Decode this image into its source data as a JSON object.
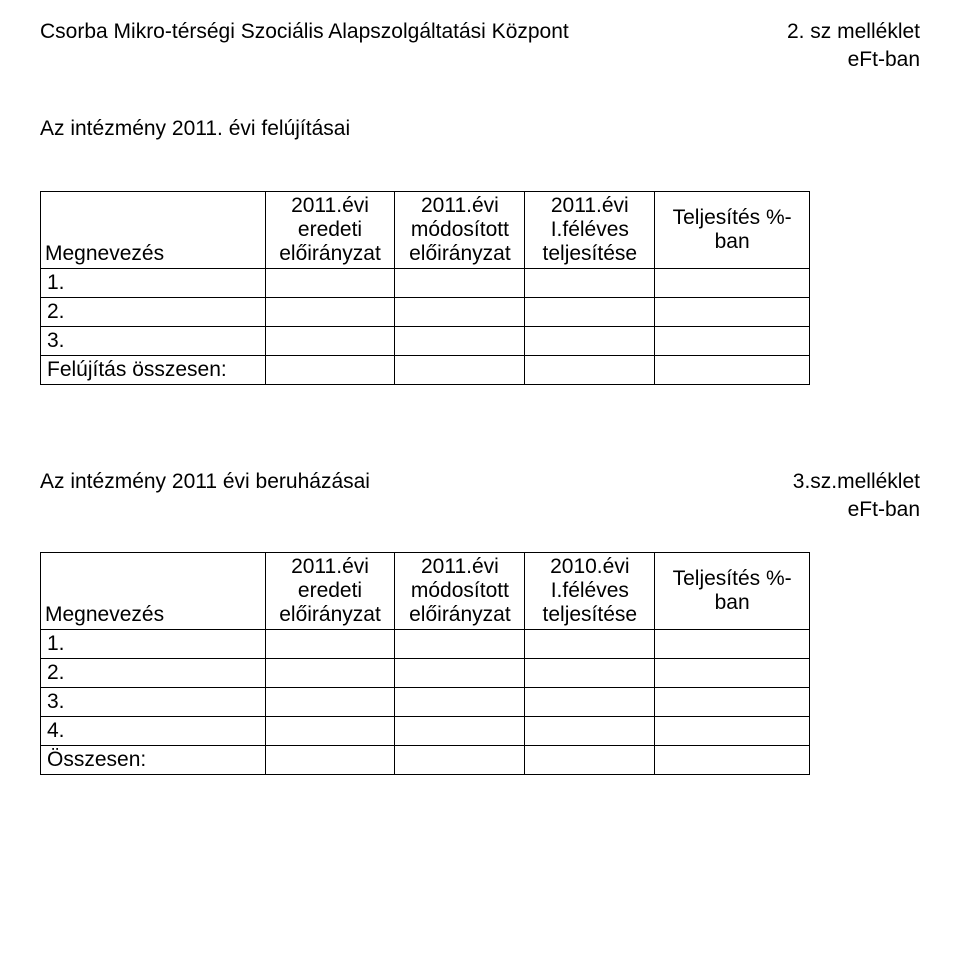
{
  "header": {
    "left": "Csorba Mikro-térségi Szociális Alapszolgáltatási Központ",
    "right": "2. sz melléklet",
    "eft": "eFt-ban"
  },
  "subtitle": "Az intézmény 2011. évi felújításai",
  "table1": {
    "headers": {
      "label": "Megnevezés",
      "h1_l1": "2011.évi",
      "h1_l2": "eredeti",
      "h1_l3": "előirányzat",
      "h2_l1": "2011.évi",
      "h2_l2": "módosított",
      "h2_l3": "előirányzat",
      "h3_l1": "2011.évi",
      "h3_l2": "I.féléves",
      "h3_l3": "teljesítése",
      "h4_l1": "Teljesítés %-",
      "h4_l2": "ban"
    },
    "rows": {
      "r1": "1.",
      "r2": "2.",
      "r3": "3.",
      "r4": "Felújítás összesen:"
    }
  },
  "section2": {
    "left": "Az intézmény  2011 évi beruházásai",
    "right": "3.sz.melléklet",
    "eft": "eFt-ban"
  },
  "table2": {
    "headers": {
      "label": "Megnevezés",
      "h1_l1": "2011.évi",
      "h1_l2": "eredeti",
      "h1_l3": "előirányzat",
      "h2_l1": "2011.évi",
      "h2_l2": "módosított",
      "h2_l3": "előirányzat",
      "h3_l1": "2010.évi",
      "h3_l2": "I.féléves",
      "h3_l3": "teljesítése",
      "h4_l1": "Teljesítés %-",
      "h4_l2": "ban"
    },
    "rows": {
      "r1": "1.",
      "r2": "2.",
      "r3": "3.",
      "r4": "4.",
      "r5": "Összesen:"
    }
  }
}
